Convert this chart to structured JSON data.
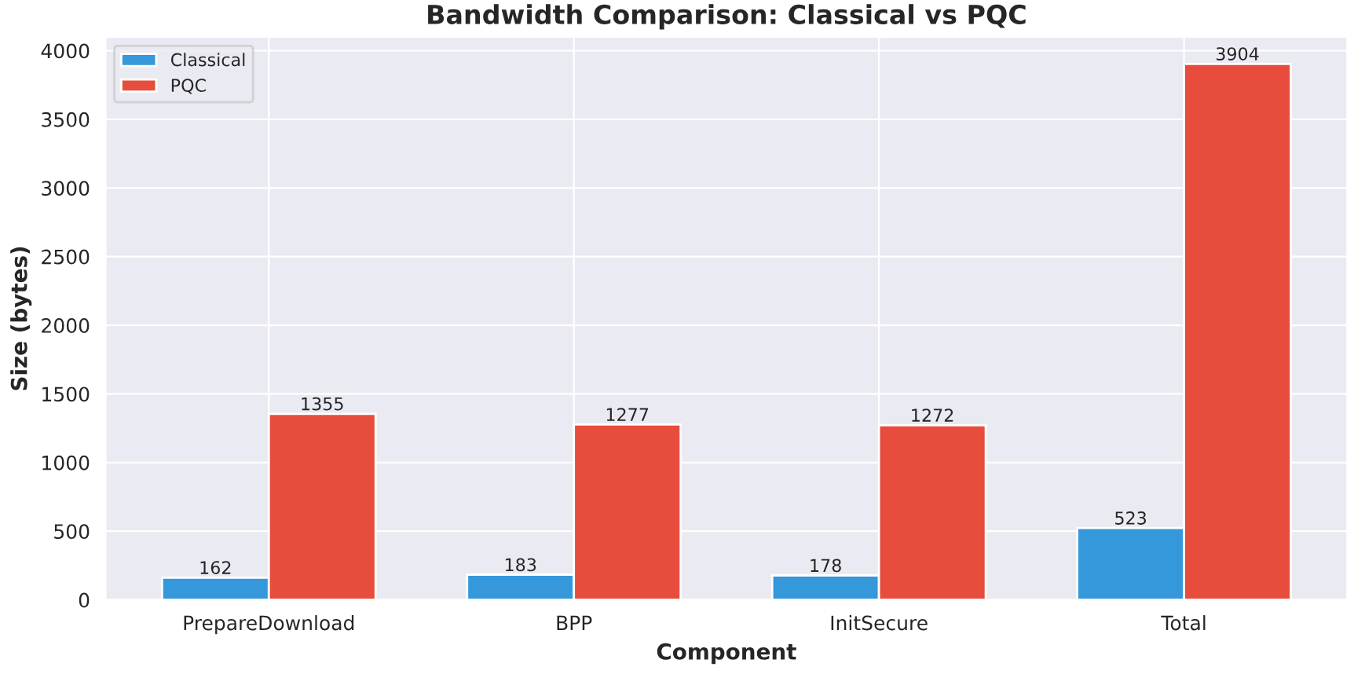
{
  "chart_data": {
    "type": "bar",
    "title": "Bandwidth Comparison: Classical vs PQC",
    "xlabel": "Component",
    "ylabel": "Size (bytes)",
    "categories": [
      "PrepareDownload",
      "BPP",
      "InitSecure",
      "Total"
    ],
    "series": [
      {
        "name": "Classical",
        "color": "#3498db",
        "values": [
          162,
          183,
          178,
          523
        ]
      },
      {
        "name": "PQC",
        "color": "#e74c3c",
        "values": [
          1355,
          1277,
          1272,
          3904
        ]
      }
    ],
    "ylim": [
      0,
      4099
    ],
    "yticks": [
      0,
      500,
      1000,
      1500,
      2000,
      2500,
      3000,
      3500,
      4000
    ],
    "grid": true,
    "legend": "top left",
    "data_labels": true
  }
}
